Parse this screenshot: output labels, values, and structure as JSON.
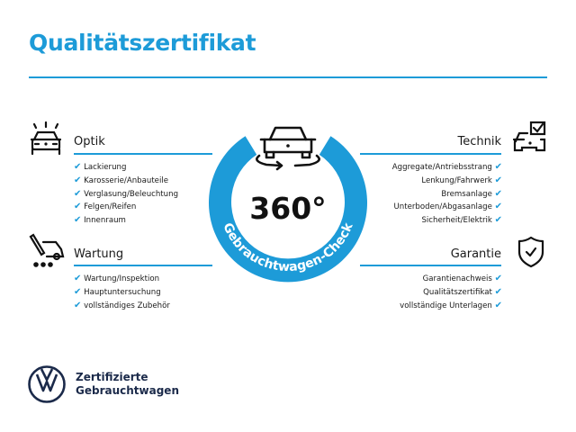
{
  "title": "Qualitätszertifikat",
  "accent_color": "#1d9bd8",
  "badge": {
    "value": "360°",
    "ring_text": "Gebrauchtwagen-Check",
    "icon": "car-rotate-icon"
  },
  "sections": {
    "optik": {
      "title": "Optik",
      "icon": "car-lights-icon",
      "items": [
        "Lackierung",
        "Karosserie/Anbauteile",
        "Verglasung/Beleuchtung",
        "Felgen/Reifen",
        "Innenraum"
      ]
    },
    "wartung": {
      "title": "Wartung",
      "icon": "service-van-icon",
      "items": [
        "Wartung/Inspektion",
        "Hauptuntersuchung",
        "vollständiges Zubehör"
      ]
    },
    "technik": {
      "title": "Technik",
      "icon": "car-checkbox-icon",
      "items": [
        "Aggregate/Antriebsstrang",
        "Lenkung/Fahrwerk",
        "Bremsanlage",
        "Unterboden/Abgasanlage",
        "Sicherheit/Elektrik"
      ]
    },
    "garantie": {
      "title": "Garantie",
      "icon": "shield-check-icon",
      "items": [
        "Garantienachweis",
        "Qualitätszertifikat",
        "vollständige Unterlagen"
      ]
    }
  },
  "check_icon": "checkmark-icon",
  "footer": {
    "line1": "Zertifizierte",
    "line2": "Gebrauchtwagen",
    "logo": "VW"
  }
}
